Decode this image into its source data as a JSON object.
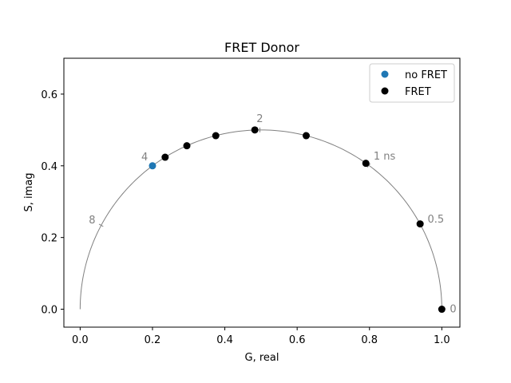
{
  "chart_data": {
    "type": "scatter",
    "title": "FRET Donor",
    "xlabel": "G, real",
    "ylabel": "S, imag",
    "xlim": [
      -0.045,
      1.05
    ],
    "ylim": [
      -0.05,
      0.7
    ],
    "xticks": [
      0.0,
      0.2,
      0.4,
      0.6,
      0.8,
      1.0
    ],
    "xtick_labels": [
      "0.0",
      "0.2",
      "0.4",
      "0.6",
      "0.8",
      "1.0"
    ],
    "yticks": [
      0.0,
      0.2,
      0.4,
      0.6
    ],
    "ytick_labels": [
      "0.0",
      "0.2",
      "0.4",
      "0.6"
    ],
    "grid": false,
    "legend_position": "top-right",
    "universal_circle": {
      "center_x": 0.5,
      "center_y": 0.0,
      "radius": 0.5,
      "color": "#808080"
    },
    "lifetime_labels": [
      {
        "text": "0",
        "g": 1.0,
        "s": 0.0
      },
      {
        "text": "0.5",
        "g": 0.941,
        "s": 0.236
      },
      {
        "text": "1 ns",
        "g": 0.798,
        "s": 0.401
      },
      {
        "text": "2",
        "g": 0.497,
        "s": 0.5
      },
      {
        "text": "4",
        "g": 0.198,
        "s": 0.399
      },
      {
        "text": "8",
        "g": 0.058,
        "s": 0.234
      }
    ],
    "series": [
      {
        "name": "no FRET",
        "color": "#1f77b4",
        "points": [
          [
            0.2,
            0.4
          ]
        ]
      },
      {
        "name": "FRET",
        "color": "#000000",
        "points": [
          [
            0.235,
            0.424
          ],
          [
            0.295,
            0.456
          ],
          [
            0.375,
            0.484
          ],
          [
            0.483,
            0.5
          ],
          [
            0.625,
            0.484
          ],
          [
            0.79,
            0.407
          ],
          [
            0.94,
            0.238
          ],
          [
            1.0,
            0.0
          ]
        ]
      }
    ]
  }
}
